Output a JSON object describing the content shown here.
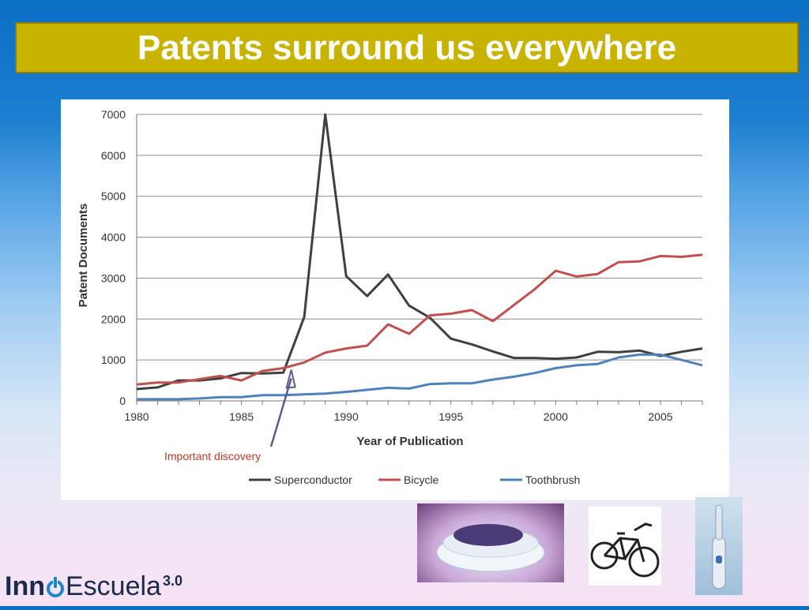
{
  "slide": {
    "title": "Patents surround us everywhere",
    "logo": {
      "part1": "Inn",
      "part2": "Escuela",
      "version": "3.0"
    }
  },
  "chart_data": {
    "type": "line",
    "xlabel": "Year of Publication",
    "ylabel": "Patent Documents",
    "ylim": [
      0,
      7000
    ],
    "xlim": [
      1980,
      2007
    ],
    "x_ticks": [
      1980,
      1985,
      1990,
      1995,
      2000,
      2005
    ],
    "y_ticks": [
      0,
      1000,
      2000,
      3000,
      4000,
      5000,
      6000,
      7000
    ],
    "grid": "horizontal",
    "legend": "bottom",
    "annotation": {
      "text": "Important discovery",
      "x": 1987,
      "color": "#c0392b"
    },
    "x": [
      1980,
      1981,
      1982,
      1983,
      1984,
      1985,
      1986,
      1987,
      1988,
      1989,
      1990,
      1991,
      1992,
      1993,
      1994,
      1995,
      1996,
      1997,
      1998,
      1999,
      2000,
      2001,
      2002,
      2003,
      2004,
      2005,
      2006,
      2007
    ],
    "series": [
      {
        "name": "Superconductor",
        "color": "#404040",
        "values": [
          290,
          330,
          500,
          500,
          550,
          680,
          670,
          690,
          2050,
          7000,
          3050,
          2560,
          3090,
          2330,
          2030,
          1520,
          1380,
          1210,
          1050,
          1050,
          1030,
          1060,
          1200,
          1190,
          1230,
          1100,
          1200,
          1280
        ]
      },
      {
        "name": "Bicycle",
        "color": "#c0504d",
        "values": [
          400,
          450,
          450,
          530,
          610,
          500,
          730,
          800,
          940,
          1180,
          1280,
          1350,
          1870,
          1640,
          2090,
          2130,
          2220,
          1950,
          2340,
          2730,
          3180,
          3040,
          3100,
          3390,
          3410,
          3540,
          3520,
          3570
        ]
      },
      {
        "name": "Toothbrush",
        "color": "#4f81bd",
        "values": [
          40,
          40,
          40,
          60,
          90,
          90,
          140,
          140,
          160,
          180,
          220,
          270,
          320,
          300,
          410,
          430,
          430,
          520,
          590,
          680,
          800,
          870,
          900,
          1060,
          1130,
          1130,
          1000,
          870
        ]
      }
    ]
  },
  "images": {
    "superconductor": "superconductor-photo",
    "bicycle": "bicycle-photo",
    "toothbrush": "toothbrush-photo"
  }
}
